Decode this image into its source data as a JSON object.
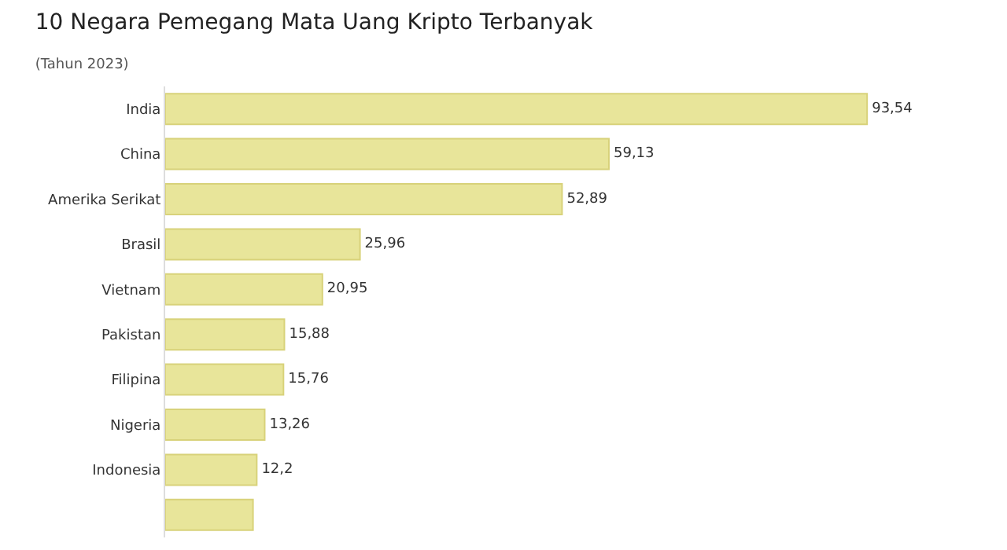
{
  "chart_data": {
    "type": "bar",
    "orientation": "horizontal",
    "title": "10 Negara Pemegang Mata Uang Kripto Terbanyak",
    "subtitle": "(Tahun 2023)",
    "categories": [
      "India",
      "China",
      "Amerika Serikat",
      "Brasil",
      "Vietnam",
      "Pakistan",
      "Filipina",
      "Nigeria",
      "Indonesia",
      null
    ],
    "values": [
      93.54,
      59.13,
      52.89,
      25.96,
      20.95,
      15.88,
      15.76,
      13.26,
      12.2,
      11.7
    ],
    "value_labels": [
      "93,54",
      "59,13",
      "52,89",
      "25,96",
      "20,95",
      "15,88",
      "15,76",
      "13,26",
      "12,2",
      null
    ],
    "color": "#e8e59a"
  }
}
